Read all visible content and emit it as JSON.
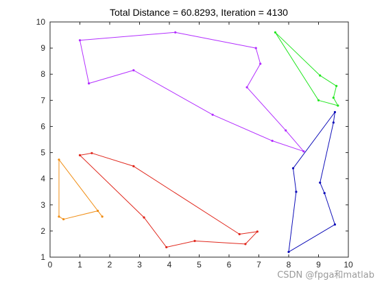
{
  "chart_data": {
    "type": "line",
    "title": "Total Distance = 60.8293, Iteration = 4130",
    "xlabel": "",
    "ylabel": "",
    "xlim": [
      0,
      10
    ],
    "ylim": [
      1,
      10
    ],
    "xticks": [
      0,
      1,
      2,
      3,
      4,
      5,
      6,
      7,
      8,
      9,
      10
    ],
    "yticks": [
      1,
      2,
      3,
      4,
      5,
      6,
      7,
      8,
      9,
      10
    ],
    "grid": false,
    "series": [
      {
        "color": "#b22cff",
        "closed": true,
        "points": [
          [
            1.0,
            9.3
          ],
          [
            4.2,
            9.6
          ],
          [
            6.9,
            9.0
          ],
          [
            7.05,
            8.4
          ],
          [
            6.6,
            7.5
          ],
          [
            7.9,
            5.85
          ],
          [
            8.5,
            5.05
          ],
          [
            7.45,
            5.45
          ],
          [
            5.45,
            6.45
          ],
          [
            2.8,
            8.15
          ],
          [
            1.3,
            7.65
          ]
        ]
      },
      {
        "color": "#21e61f",
        "closed": true,
        "points": [
          [
            7.55,
            9.6
          ],
          [
            9.05,
            7.95
          ],
          [
            9.6,
            7.55
          ],
          [
            9.5,
            7.1
          ],
          [
            9.65,
            6.8
          ],
          [
            9.0,
            7.0
          ]
        ]
      },
      {
        "color": "#0c0cb8",
        "closed": true,
        "points": [
          [
            9.55,
            6.55
          ],
          [
            8.15,
            4.4
          ],
          [
            8.25,
            3.5
          ],
          [
            8.0,
            1.2
          ],
          [
            9.55,
            2.25
          ],
          [
            9.2,
            3.45
          ],
          [
            9.05,
            3.85
          ],
          [
            9.5,
            6.15
          ]
        ]
      },
      {
        "color": "#e0261b",
        "closed": true,
        "points": [
          [
            1.0,
            4.9
          ],
          [
            1.4,
            4.98
          ],
          [
            2.8,
            4.48
          ],
          [
            6.35,
            1.88
          ],
          [
            6.95,
            1.98
          ],
          [
            6.55,
            1.5
          ],
          [
            4.85,
            1.62
          ],
          [
            3.9,
            1.38
          ],
          [
            3.15,
            2.52
          ]
        ]
      },
      {
        "color": "#f08d13",
        "closed": true,
        "points": [
          [
            0.3,
            4.73
          ],
          [
            1.75,
            2.55
          ],
          [
            1.6,
            2.77
          ],
          [
            0.45,
            2.45
          ],
          [
            0.3,
            2.55
          ]
        ]
      }
    ]
  },
  "watermark": "CSDN @fpga和matlab"
}
